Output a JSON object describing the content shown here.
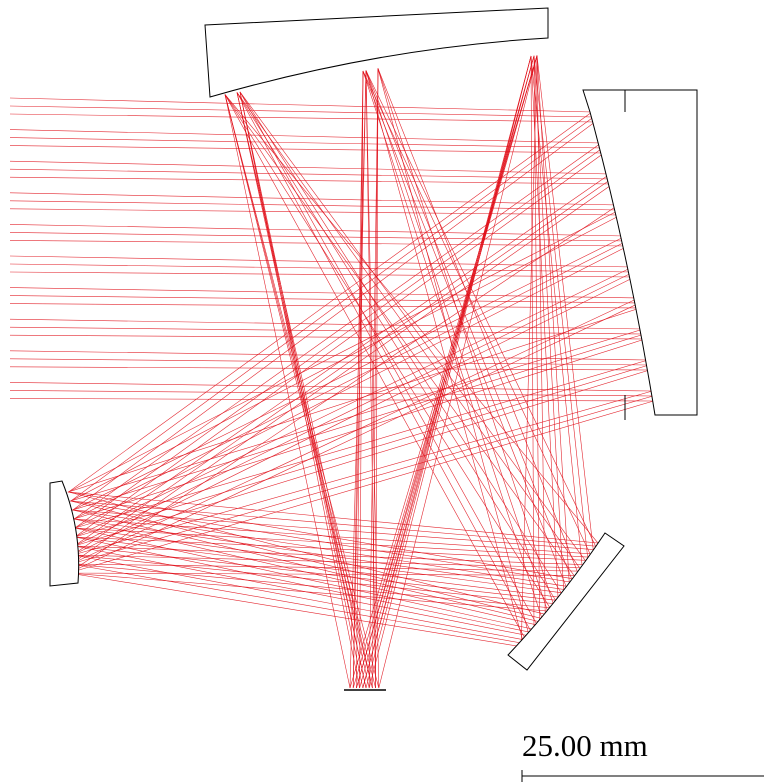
{
  "scale_bar": {
    "label": "25.00 mm"
  }
}
